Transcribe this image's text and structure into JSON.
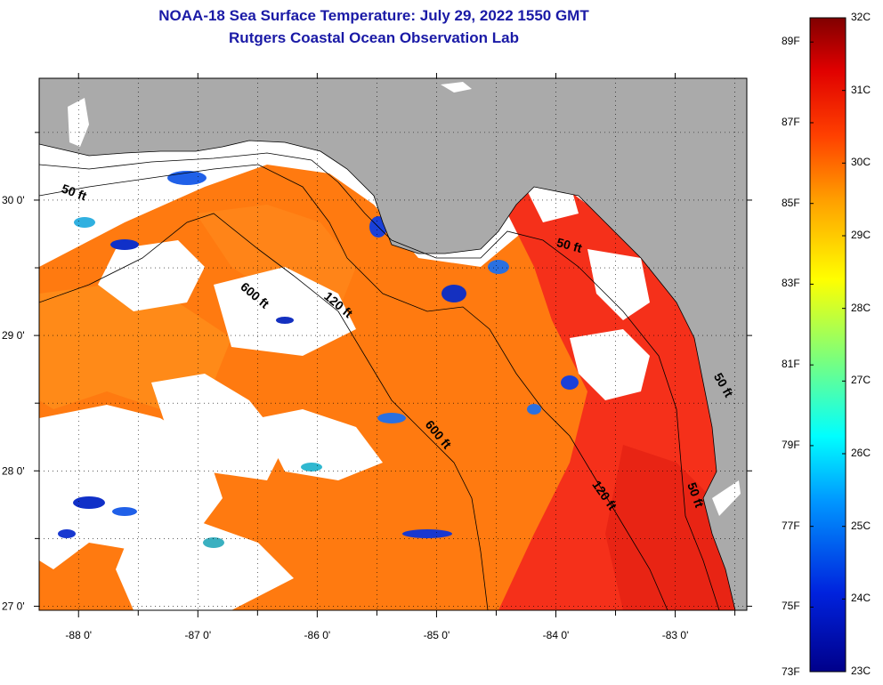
{
  "title": {
    "line1": "NOAA-18 Sea Surface Temperature:  July 29, 2022 1550 GMT",
    "line2": "Rutgers Coastal Ocean Observation Lab"
  },
  "axes": {
    "longitude_ticks": [
      "-88 0'",
      "-87 0'",
      "-86 0'",
      "-85 0'",
      "-84 0'",
      "-83 0'"
    ],
    "latitude_ticks": [
      "30 0'",
      "29 0'",
      "28 0'",
      "27 0'"
    ],
    "lon_range": [
      -88.33,
      -82.4
    ],
    "lat_range": [
      26.97,
      30.9
    ]
  },
  "depth_contours": [
    {
      "label": "50 ft",
      "lon": -88.15,
      "lat": 30.06
    },
    {
      "label": "600 ft",
      "lon": -86.65,
      "lat": 29.35
    },
    {
      "label": "120 ft",
      "lon": -85.95,
      "lat": 29.28
    },
    {
      "label": "50 ft",
      "lon": -84.0,
      "lat": 29.66
    },
    {
      "label": "600 ft",
      "lon": -85.1,
      "lat": 28.34
    },
    {
      "label": "120 ft",
      "lon": -83.7,
      "lat": 27.9
    },
    {
      "label": "50 ft",
      "lon": -82.9,
      "lat": 27.9
    },
    {
      "label": "50 ft",
      "lon": -82.68,
      "lat": 28.7
    }
  ],
  "colorbar": {
    "fahrenheit_labels": [
      "89F",
      "87F",
      "85F",
      "83F",
      "81F",
      "79F",
      "77F",
      "75F",
      "73F"
    ],
    "celsius_labels": [
      "32C",
      "31C",
      "30C",
      "29C",
      "28C",
      "27C",
      "26C",
      "25C",
      "24C",
      "23C"
    ],
    "celsius_range": [
      23,
      32
    ]
  },
  "colors": {
    "title": "#1a1aa6",
    "land": "#aaaaaa",
    "cloud": "#ffffff",
    "warm": "#ff6a00",
    "hot": "#f02010",
    "cool": "#1540e0"
  }
}
